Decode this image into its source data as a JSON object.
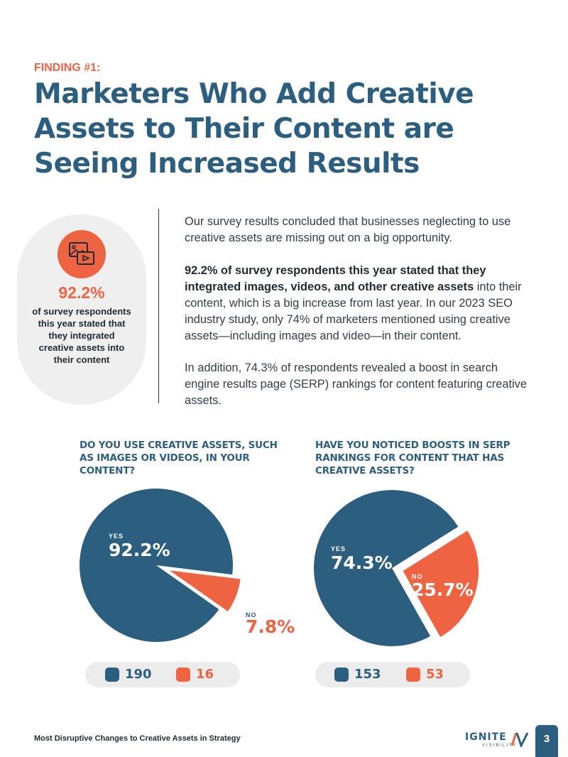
{
  "header": {
    "finding": "FINDING #1:",
    "headline": "Marketers Who Add Creative Assets to Their Content are Seeing Increased Results"
  },
  "stat_card": {
    "icon": "images-video-icon",
    "value": "92.2%",
    "description": "of survey respondents this year stated that they integrated creative assets into their content"
  },
  "body": {
    "p1": "Our survey results concluded that businesses neglecting to use creative assets are missing out on a big opportunity.",
    "p2_bold": "92.2% of survey respondents this year stated that they integrated images, videos, and other creative assets",
    "p2_rest": " into their content, which is a big increase from last year. In our 2023 SEO industry study, only 74% of marketers mentioned using creative assets—including images and video—in their content.",
    "p3": "In addition, 74.3% of respondents revealed a boost in search engine results page (SERP) rankings for content featuring creative assets."
  },
  "colors": {
    "blue": "#2c5e80",
    "orange": "#ee6341",
    "gray": "#ececec"
  },
  "chart_data": [
    {
      "type": "pie",
      "title": "DO YOU USE CREATIVE ASSETS, SUCH AS IMAGES OR VIDEOS, IN YOUR CONTENT?",
      "categories": [
        "YES",
        "NO"
      ],
      "percent_labels": [
        "92.2%",
        "7.8%"
      ],
      "values": [
        92.2,
        7.8
      ],
      "counts": [
        190,
        16
      ],
      "colors": [
        "#2c5e80",
        "#ee6341"
      ],
      "exploded": "NO"
    },
    {
      "type": "pie",
      "title": "HAVE YOU NOTICED BOOSTS IN SERP RANKINGS FOR CONTENT THAT HAS CREATIVE ASSETS?",
      "categories": [
        "YES",
        "NO"
      ],
      "percent_labels": [
        "74.3%",
        "25.7%"
      ],
      "values": [
        74.3,
        25.7
      ],
      "counts": [
        153,
        53
      ],
      "colors": [
        "#2c5e80",
        "#ee6341"
      ],
      "exploded": "NO"
    }
  ],
  "footer": {
    "text": "Most Disruptive Changes to Creative Assets in Strategy",
    "logo_word": "IGNITE",
    "logo_sub": "VISIBILITY",
    "page_number": "3"
  }
}
